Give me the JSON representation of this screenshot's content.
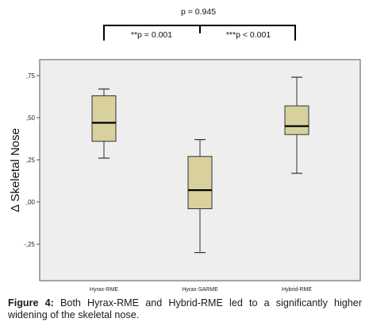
{
  "chart_data": {
    "type": "box",
    "categories": [
      "Hyrax-RME",
      "Hyrax-SARME",
      "Hybrid-RME"
    ],
    "boxes": [
      {
        "min": 0.26,
        "q1": 0.36,
        "median": 0.47,
        "q3": 0.63,
        "max": 0.67
      },
      {
        "min": -0.3,
        "q1": -0.04,
        "median": 0.07,
        "q3": 0.27,
        "max": 0.37
      },
      {
        "min": 0.17,
        "q1": 0.4,
        "median": 0.45,
        "q3": 0.57,
        "max": 0.74
      }
    ],
    "ylabel": "Δ Skeletal Nose",
    "y_ticks": [
      0.75,
      0.5,
      0.25,
      0.0,
      -0.25
    ],
    "y_tick_labels": [
      ",75",
      ",50",
      ",25",
      ",00",
      "-,25"
    ],
    "ylim": [
      -0.48,
      0.86
    ],
    "grid": false,
    "box_color": "#d8d19e",
    "comparisons": [
      {
        "label": "p = 0.945",
        "from": 0,
        "to": 2
      },
      {
        "label": "**p = 0.001",
        "from": 0,
        "to": 1
      },
      {
        "label": "***p < 0.001",
        "from": 1,
        "to": 2
      }
    ]
  },
  "caption": {
    "lead": "Figure 4:",
    "text": "Both Hyrax-RME and Hybrid-RME led to a significantly higher widening of the skeletal nose."
  }
}
